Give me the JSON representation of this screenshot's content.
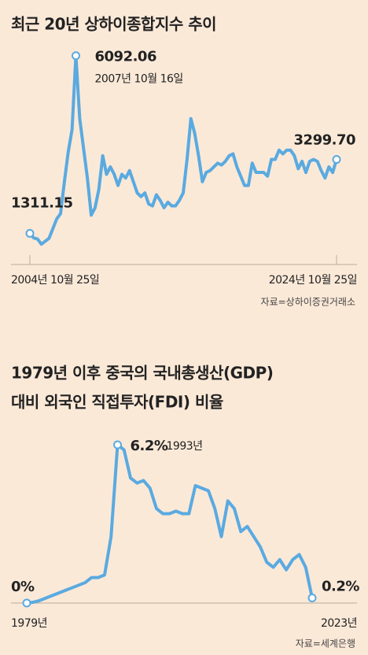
{
  "chart_data": [
    {
      "type": "line",
      "title": [
        "최근 20년 상하이종합지수 추이"
      ],
      "color": "#5aaae0",
      "categories": [
        "2004년 10월 25일",
        null,
        null,
        null,
        null,
        null,
        null,
        null,
        null,
        null,
        null,
        null,
        null,
        null,
        null,
        null,
        null,
        null,
        null,
        null,
        null,
        null,
        null,
        null,
        null,
        null,
        null,
        null,
        null,
        null,
        null,
        null,
        null,
        null,
        null,
        null,
        null,
        null,
        null,
        null,
        null,
        null,
        null,
        null,
        null,
        null,
        null,
        null,
        null,
        null,
        null,
        null,
        null,
        null,
        null,
        null,
        null,
        null,
        null,
        null,
        null,
        null,
        null,
        null,
        null,
        null,
        null,
        null,
        null,
        null,
        null,
        null,
        null,
        null,
        null,
        null,
        null,
        null,
        null,
        null,
        "2024년 10월 25일"
      ],
      "values": [
        1311.15,
        1190,
        1160,
        1020,
        1100,
        1180,
        1440,
        1700,
        1840,
        2700,
        3500,
        4100,
        6092.06,
        4400,
        3600,
        2800,
        1800,
        2000,
        2500,
        3400,
        2900,
        3100,
        2900,
        2600,
        2900,
        2800,
        3000,
        2700,
        2400,
        2300,
        2400,
        2100,
        2050,
        2350,
        2200,
        2000,
        2150,
        2050,
        2050,
        2200,
        2400,
        3300,
        4400,
        4000,
        3400,
        2700,
        2950,
        3000,
        3100,
        3200,
        3150,
        3250,
        3400,
        3450,
        3100,
        2850,
        2600,
        2600,
        3200,
        2950,
        2950,
        2950,
        2850,
        3300,
        3300,
        3550,
        3450,
        3550,
        3550,
        3400,
        3050,
        3250,
        2950,
        3250,
        3300,
        3250,
        3000,
        2800,
        3100,
        2950,
        3299.7
      ],
      "value_labels": [
        "1311.15",
        null,
        null,
        null,
        null,
        null,
        null,
        null,
        null,
        null,
        null,
        null,
        "6092.06",
        null,
        null,
        null,
        null,
        null,
        null,
        null,
        null,
        null,
        null,
        null,
        null,
        null,
        null,
        null,
        null,
        null,
        null,
        null,
        null,
        null,
        null,
        null,
        null,
        null,
        null,
        null,
        null,
        null,
        null,
        null,
        null,
        null,
        null,
        null,
        null,
        null,
        null,
        null,
        null,
        null,
        null,
        null,
        null,
        null,
        null,
        null,
        null,
        null,
        null,
        null,
        null,
        null,
        null,
        null,
        null,
        null,
        null,
        null,
        null,
        null,
        null,
        null,
        null,
        null,
        null,
        null,
        "3299.70"
      ],
      "annotations": [
        "2007년 10월 16일"
      ],
      "ylim": [
        600,
        6150
      ],
      "source": "자료=상하이증권거래소"
    },
    {
      "type": "line",
      "title": [
        "1979년 이후 중국의 국내총생산(GDP)",
        "대비 외국인 직접투자(FDI) 비율"
      ],
      "color": "#5aaae0",
      "categories": [
        "1979년",
        null,
        null,
        null,
        null,
        null,
        null,
        null,
        null,
        null,
        null,
        null,
        null,
        null,
        null,
        null,
        null,
        null,
        null,
        null,
        null,
        null,
        null,
        null,
        null,
        null,
        null,
        null,
        null,
        null,
        null,
        null,
        null,
        null,
        null,
        null,
        null,
        null,
        null,
        null,
        null,
        null,
        null,
        null,
        "2023년"
      ],
      "values": [
        0,
        0.03,
        0.1,
        0.2,
        0.3,
        0.4,
        0.5,
        0.6,
        0.7,
        0.8,
        1.0,
        1.0,
        1.1,
        2.6,
        6.2,
        6.0,
        4.9,
        4.7,
        4.8,
        4.5,
        3.7,
        3.5,
        3.5,
        3.6,
        3.5,
        3.5,
        4.6,
        4.5,
        4.4,
        3.7,
        2.6,
        4.0,
        3.7,
        2.8,
        3.0,
        2.6,
        2.2,
        1.6,
        1.4,
        1.7,
        1.3,
        1.7,
        1.9,
        1.4,
        0.2
      ],
      "value_labels": [
        "0%",
        null,
        null,
        null,
        null,
        null,
        null,
        null,
        null,
        null,
        null,
        null,
        null,
        null,
        "6.2%",
        null,
        null,
        null,
        null,
        null,
        null,
        null,
        null,
        null,
        null,
        null,
        null,
        null,
        null,
        null,
        null,
        null,
        null,
        null,
        null,
        null,
        null,
        null,
        null,
        null,
        null,
        null,
        null,
        null,
        "0.2%"
      ],
      "annotations": [
        "1993년"
      ],
      "ylim": [
        0,
        6.6
      ],
      "source": "자료=세계은행"
    }
  ]
}
